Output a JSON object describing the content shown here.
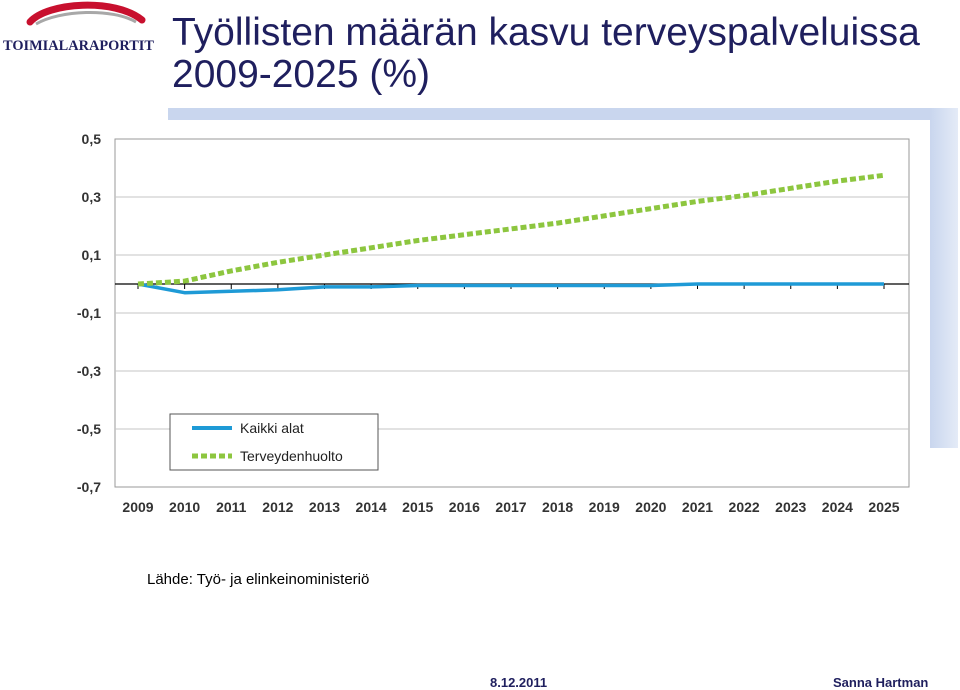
{
  "logo": {
    "text": "TOIMIALARAPORTIT"
  },
  "header": {
    "title_line1": "Työllisten määrän kasvu terveyspalveluissa",
    "title_line2": "2009-2025 (%)"
  },
  "chart_data": {
    "type": "line",
    "x": [
      "2009",
      "2010",
      "2011",
      "2012",
      "2013",
      "2014",
      "2015",
      "2016",
      "2017",
      "2018",
      "2019",
      "2020",
      "2021",
      "2022",
      "2023",
      "2024",
      "2025"
    ],
    "ylim": [
      -0.7,
      0.5
    ],
    "yticks": [
      "0,5",
      "0,3",
      "0,1",
      "-0,1",
      "-0,3",
      "-0,5",
      "-0,7"
    ],
    "ytick_values": [
      0.5,
      0.3,
      0.1,
      -0.1,
      -0.3,
      -0.5,
      -0.7
    ],
    "grid": true,
    "legend_position": "lower-left",
    "series": [
      {
        "name": "Kaikki alat",
        "color": "#1e9ad6",
        "style": "solid",
        "values": [
          0.0,
          -0.03,
          -0.025,
          -0.02,
          -0.01,
          -0.01,
          -0.005,
          -0.005,
          -0.005,
          -0.005,
          -0.005,
          -0.005,
          0.0,
          0.0,
          0.0,
          0.0,
          0.0
        ]
      },
      {
        "name": "Terveydenhuolto",
        "color": "#8dc63f",
        "style": "dotted",
        "values": [
          0.0,
          0.01,
          0.045,
          0.075,
          0.1,
          0.125,
          0.15,
          0.17,
          0.19,
          0.21,
          0.235,
          0.26,
          0.285,
          0.305,
          0.33,
          0.355,
          0.375
        ]
      }
    ]
  },
  "source": "Lähde: Työ- ja elinkeinoministeriö",
  "footer": {
    "date": "8.12.2011",
    "author": "Sanna Hartman"
  }
}
